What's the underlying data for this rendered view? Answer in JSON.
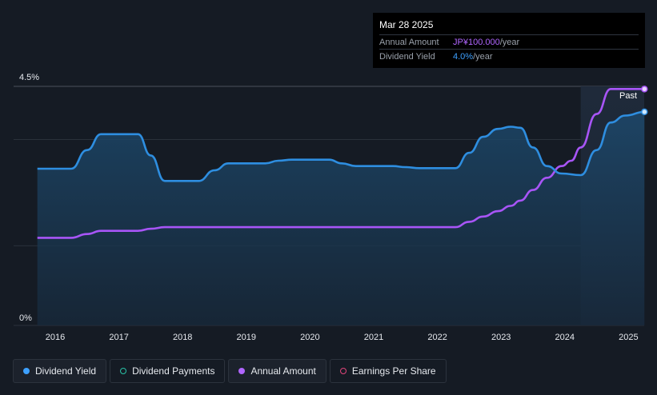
{
  "tooltip": {
    "date": "Mar 28 2025",
    "annual_amount_label": "Annual Amount",
    "annual_amount_value": "JP¥100.000",
    "annual_amount_unit": "/year",
    "dividend_yield_label": "Dividend Yield",
    "dividend_yield_value": "4.0%",
    "dividend_yield_unit": "/year"
  },
  "past_label": "Past",
  "colors": {
    "background": "#151b24",
    "dividend_yield": "#2e8ee0",
    "annual_amount": "#a855f7",
    "earnings_per_share": "#e0457b",
    "dividend_payments": "#29c2a6"
  },
  "legend": [
    {
      "label": "Dividend Yield",
      "marker": "filled",
      "color": "#3da0ff"
    },
    {
      "label": "Dividend Payments",
      "marker": "ring",
      "color": "#29c2a6"
    },
    {
      "label": "Annual Amount",
      "marker": "filled",
      "color": "#b066ff"
    },
    {
      "label": "Earnings Per Share",
      "marker": "ring",
      "color": "#e0457b"
    }
  ],
  "chart_data": {
    "type": "line",
    "x_tick_labels": [
      "2016",
      "2017",
      "2018",
      "2019",
      "2020",
      "2021",
      "2022",
      "2023",
      "2024",
      "2025"
    ],
    "y_tick_labels": [
      "4.5%",
      "0%"
    ],
    "ylim": [
      0,
      4.5
    ],
    "xlim": [
      2015.7,
      2025.25
    ],
    "forecast_shaded_from": 2024.25,
    "series": [
      {
        "name": "Dividend Yield",
        "unit": "%",
        "points": [
          [
            2015.72,
            2.95
          ],
          [
            2016.25,
            2.95
          ],
          [
            2016.5,
            3.3
          ],
          [
            2016.72,
            3.6
          ],
          [
            2017.3,
            3.6
          ],
          [
            2017.5,
            3.2
          ],
          [
            2017.72,
            2.72
          ],
          [
            2018.25,
            2.72
          ],
          [
            2018.5,
            2.92
          ],
          [
            2018.72,
            3.05
          ],
          [
            2019.3,
            3.05
          ],
          [
            2019.5,
            3.1
          ],
          [
            2019.72,
            3.12
          ],
          [
            2020.3,
            3.12
          ],
          [
            2020.5,
            3.05
          ],
          [
            2020.72,
            3.0
          ],
          [
            2021.3,
            3.0
          ],
          [
            2021.5,
            2.98
          ],
          [
            2021.72,
            2.96
          ],
          [
            2022.28,
            2.96
          ],
          [
            2022.5,
            3.25
          ],
          [
            2022.72,
            3.55
          ],
          [
            2022.95,
            3.7
          ],
          [
            2023.15,
            3.74
          ],
          [
            2023.3,
            3.72
          ],
          [
            2023.5,
            3.35
          ],
          [
            2023.72,
            3.0
          ],
          [
            2023.95,
            2.86
          ],
          [
            2024.25,
            2.83
          ],
          [
            2024.5,
            3.3
          ],
          [
            2024.72,
            3.82
          ],
          [
            2024.95,
            3.95
          ],
          [
            2025.25,
            4.02
          ]
        ]
      },
      {
        "name": "Annual Amount",
        "unit": "relative",
        "points": [
          [
            2015.72,
            1.65
          ],
          [
            2016.25,
            1.65
          ],
          [
            2016.5,
            1.72
          ],
          [
            2016.72,
            1.78
          ],
          [
            2017.3,
            1.78
          ],
          [
            2017.5,
            1.82
          ],
          [
            2017.72,
            1.85
          ],
          [
            2022.28,
            1.85
          ],
          [
            2022.5,
            1.95
          ],
          [
            2022.72,
            2.05
          ],
          [
            2022.95,
            2.15
          ],
          [
            2023.15,
            2.25
          ],
          [
            2023.3,
            2.35
          ],
          [
            2023.5,
            2.55
          ],
          [
            2023.72,
            2.78
          ],
          [
            2023.95,
            3.0
          ],
          [
            2024.1,
            3.1
          ],
          [
            2024.25,
            3.35
          ],
          [
            2024.5,
            3.98
          ],
          [
            2024.72,
            4.45
          ],
          [
            2025.25,
            4.45
          ]
        ]
      }
    ]
  }
}
